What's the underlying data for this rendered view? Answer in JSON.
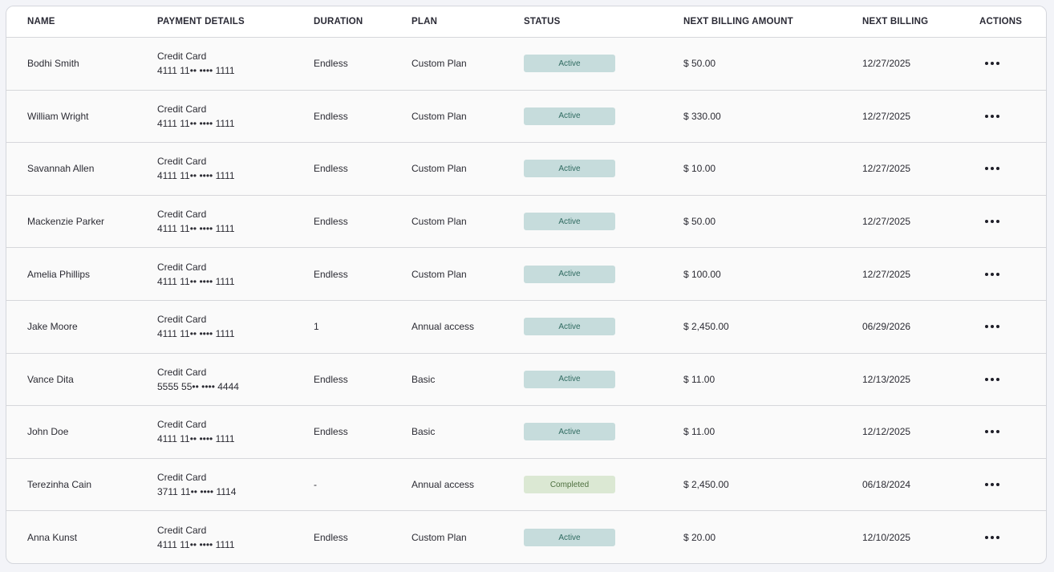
{
  "columns": [
    "NAME",
    "PAYMENT DETAILS",
    "DURATION",
    "PLAN",
    "STATUS",
    "NEXT BILLING AMOUNT",
    "NEXT BILLING",
    "ACTIONS"
  ],
  "status_colors": {
    "Active": "#c6dcdc",
    "Completed": "#dbe8d3"
  },
  "rows": [
    {
      "name": "Bodhi Smith",
      "method": "Credit Card",
      "card": "4111 11•• •••• 1111",
      "duration": "Endless",
      "plan": "Custom Plan",
      "status": "Active",
      "amount": "$ 50.00",
      "next": "12/27/2025"
    },
    {
      "name": "William Wright",
      "method": "Credit Card",
      "card": "4111 11•• •••• 1111",
      "duration": "Endless",
      "plan": "Custom Plan",
      "status": "Active",
      "amount": "$ 330.00",
      "next": "12/27/2025"
    },
    {
      "name": "Savannah Allen",
      "method": "Credit Card",
      "card": "4111 11•• •••• 1111",
      "duration": "Endless",
      "plan": "Custom Plan",
      "status": "Active",
      "amount": "$ 10.00",
      "next": "12/27/2025"
    },
    {
      "name": "Mackenzie Parker",
      "method": "Credit Card",
      "card": "4111 11•• •••• 1111",
      "duration": "Endless",
      "plan": "Custom Plan",
      "status": "Active",
      "amount": "$ 50.00",
      "next": "12/27/2025"
    },
    {
      "name": "Amelia Phillips",
      "method": "Credit Card",
      "card": "4111 11•• •••• 1111",
      "duration": "Endless",
      "plan": "Custom Plan",
      "status": "Active",
      "amount": "$ 100.00",
      "next": "12/27/2025"
    },
    {
      "name": "Jake Moore",
      "method": "Credit Card",
      "card": "4111 11•• •••• 1111",
      "duration": "1",
      "plan": "Annual access",
      "status": "Active",
      "amount": "$ 2,450.00",
      "next": "06/29/2026"
    },
    {
      "name": "Vance Dita",
      "method": "Credit Card",
      "card": "5555 55•• •••• 4444",
      "duration": "Endless",
      "plan": "Basic",
      "status": "Active",
      "amount": "$ 11.00",
      "next": "12/13/2025"
    },
    {
      "name": "John Doe",
      "method": "Credit Card",
      "card": "4111 11•• •••• 1111",
      "duration": "Endless",
      "plan": "Basic",
      "status": "Active",
      "amount": "$ 11.00",
      "next": "12/12/2025"
    },
    {
      "name": "Terezinha Cain",
      "method": "Credit Card",
      "card": "3711 11•• •••• 1114",
      "duration": "-",
      "plan": "Annual access",
      "status": "Completed",
      "amount": "$ 2,450.00",
      "next": "06/18/2024"
    },
    {
      "name": "Anna Kunst",
      "method": "Credit Card",
      "card": "4111 11•• •••• 1111",
      "duration": "Endless",
      "plan": "Custom Plan",
      "status": "Active",
      "amount": "$ 20.00",
      "next": "12/10/2025"
    }
  ]
}
